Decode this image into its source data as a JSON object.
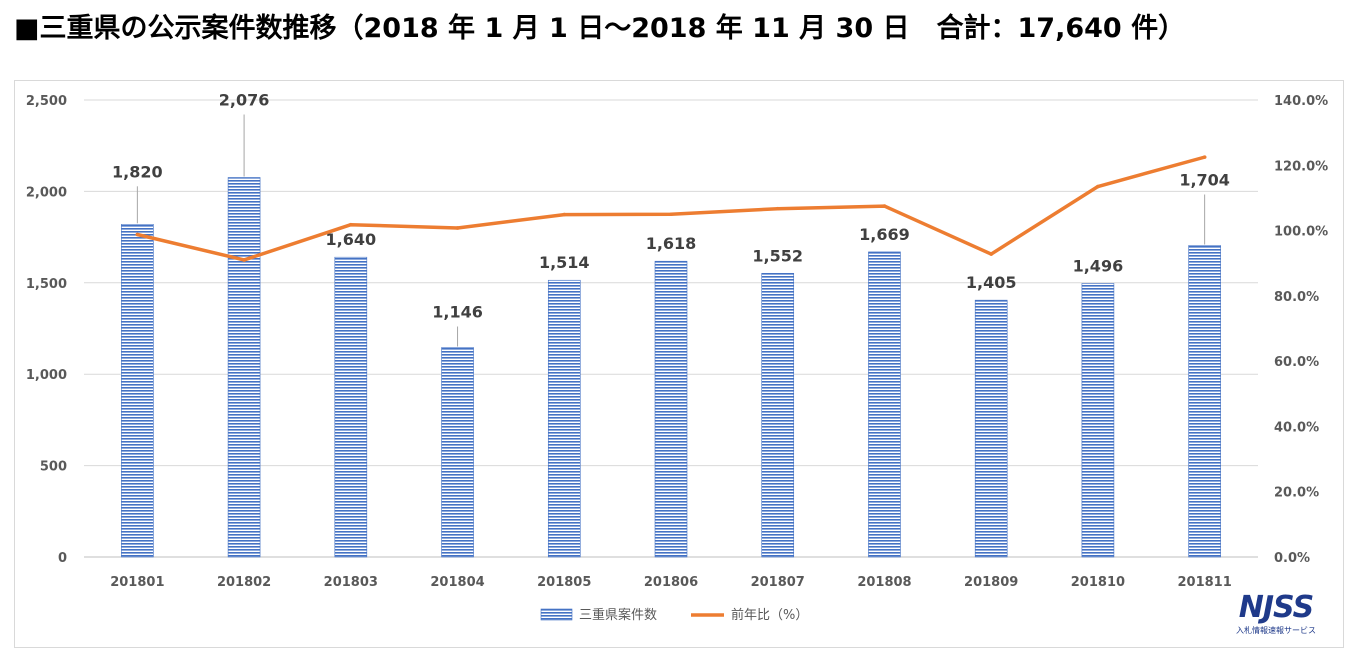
{
  "title": "■三重県の公示案件数推移（2018 年 1 月 1 日～2018 年 11 月 30 日　合計：17,640 件）",
  "chart_data": {
    "type": "bar",
    "categories": [
      "201801",
      "201802",
      "201803",
      "201804",
      "201805",
      "201806",
      "201807",
      "201808",
      "201809",
      "201810",
      "201811"
    ],
    "series": [
      {
        "name": "三重県案件数",
        "type": "bar",
        "axis": "left",
        "values": [
          1820,
          2076,
          1640,
          1146,
          1514,
          1618,
          1552,
          1669,
          1405,
          1496,
          1704
        ],
        "labels": [
          "1,820",
          "2,076",
          "1,640",
          "1,146",
          "1,514",
          "1,618",
          "1,552",
          "1,669",
          "1,405",
          "1,496",
          "1,704"
        ],
        "color": "#4472c4"
      },
      {
        "name": "前年比（%）",
        "type": "line",
        "axis": "right",
        "values": [
          98.8,
          91.0,
          101.8,
          100.8,
          104.9,
          105.0,
          106.7,
          107.5,
          92.8,
          113.5,
          122.5
        ],
        "color": "#ed7d31"
      }
    ],
    "y_left": {
      "range": [
        0,
        2500
      ],
      "ticks": [
        "0",
        "500",
        "1,000",
        "1,500",
        "2,000",
        "2,500"
      ]
    },
    "y_right": {
      "range": [
        0,
        140
      ],
      "ticks": [
        "0.0%",
        "20.0%",
        "40.0%",
        "60.0%",
        "80.0%",
        "100.0%",
        "120.0%",
        "140.0%"
      ]
    },
    "grid": true,
    "legend_position": "bottom"
  },
  "logo": {
    "text": "NJSS",
    "subtitle": "入札情報速報サービス"
  }
}
